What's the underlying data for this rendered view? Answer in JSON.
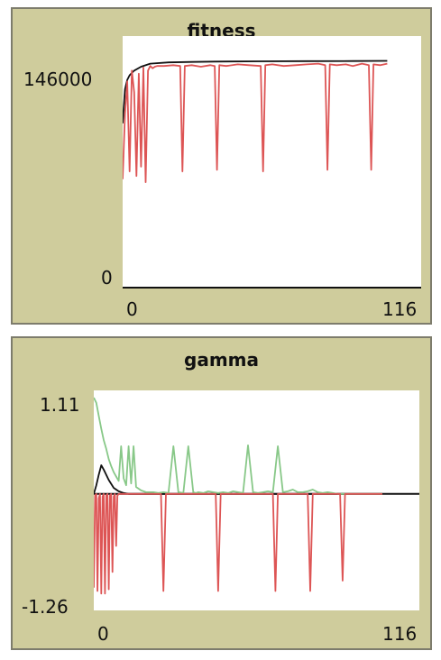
{
  "chart_data": [
    {
      "type": "line",
      "title": "fitness",
      "xlim": [
        0,
        116
      ],
      "ylim": [
        0,
        146000
      ],
      "x_tick_labels": [
        "0",
        "116"
      ],
      "y_tick_labels": [
        "146000",
        "0"
      ],
      "grid": false,
      "series": [
        {
          "color": "#111111",
          "x": [
            0,
            1,
            2,
            3,
            5,
            8,
            12,
            20,
            30,
            40,
            60,
            80,
            100,
            115
          ],
          "values": [
            106000,
            128000,
            134000,
            137000,
            140000,
            142500,
            144500,
            145300,
            145600,
            145800,
            146000,
            146100,
            146200,
            146300
          ]
        },
        {
          "color": "#dd5555",
          "x": [
            0,
            1,
            2,
            3,
            4,
            5,
            6,
            7,
            8,
            9,
            10,
            11,
            12,
            13,
            14,
            15,
            18,
            22,
            25,
            26,
            27,
            30,
            34,
            38,
            40,
            41,
            42,
            45,
            50,
            55,
            60,
            61,
            62,
            65,
            70,
            75,
            80,
            85,
            88,
            89,
            90,
            93,
            97,
            100,
            104,
            107,
            108,
            109,
            112,
            115
          ],
          "values": [
            70000,
            112000,
            133000,
            75000,
            140000,
            126000,
            72000,
            138000,
            78000,
            142000,
            68000,
            140000,
            143000,
            141500,
            142500,
            143000,
            143000,
            143500,
            143000,
            75000,
            143000,
            143500,
            142500,
            143500,
            143000,
            76000,
            143500,
            143000,
            144000,
            143500,
            143000,
            75000,
            143500,
            144000,
            143000,
            143500,
            144000,
            144500,
            143500,
            76000,
            144000,
            143500,
            144000,
            143000,
            144500,
            143500,
            76000,
            144000,
            143500,
            144500
          ]
        }
      ]
    },
    {
      "type": "line",
      "title": "gamma",
      "xlim": [
        0,
        116
      ],
      "ylim": [
        -1.26,
        1.11
      ],
      "x_tick_labels": [
        "0",
        "116"
      ],
      "y_tick_labels": [
        "1.11",
        "-1.26"
      ],
      "grid": false,
      "series": [
        {
          "color": "#111111",
          "x": [
            0,
            1,
            2,
            3,
            4,
            6,
            8,
            10,
            12,
            14,
            16,
            20,
            30,
            60,
            90,
            116
          ],
          "values": [
            0.0,
            0.1,
            0.22,
            0.33,
            0.28,
            0.16,
            0.07,
            0.03,
            0.01,
            0.0,
            0.0,
            0.0,
            0.0,
            0.0,
            0.0,
            0.0
          ]
        },
        {
          "color": "#88c888",
          "x": [
            0,
            1,
            2,
            3,
            4,
            5,
            6,
            7,
            8,
            9,
            10,
            11,
            12,
            13,
            14,
            15,
            16,
            17,
            18,
            19,
            20,
            21,
            22,
            23,
            24,
            26,
            28,
            30,
            32,
            34,
            36,
            38,
            40,
            41,
            42,
            44,
            45,
            46,
            48,
            50,
            52,
            54,
            56,
            58,
            60,
            62,
            64,
            66,
            68,
            70,
            72,
            74,
            76,
            78,
            80,
            82,
            84,
            86,
            88,
            90,
            92,
            94,
            96,
            98,
            100,
            102,
            104,
            106,
            108,
            110,
            112,
            114,
            116
          ],
          "values": [
            1.11,
            1.05,
            0.9,
            0.75,
            0.62,
            0.52,
            0.4,
            0.32,
            0.25,
            0.2,
            0.15,
            0.55,
            0.18,
            0.1,
            0.55,
            0.12,
            0.55,
            0.08,
            0.06,
            0.04,
            0.03,
            0.02,
            0.02,
            0.02,
            0.02,
            0.01,
            0.02,
            0.01,
            0.55,
            0.02,
            0.01,
            0.55,
            0.02,
            0.01,
            0.02,
            0.01,
            0.02,
            0.03,
            0.02,
            0.01,
            0.02,
            0.01,
            0.03,
            0.02,
            0.01,
            0.56,
            0.02,
            0.01,
            0.02,
            0.03,
            0.02,
            0.55,
            0.02,
            0.03,
            0.05,
            0.02,
            0.02,
            0.03,
            0.05,
            0.02,
            0.01,
            0.02,
            0.01,
            0.0,
            0.0,
            0.0,
            0.0,
            0.0,
            0.0,
            0.0,
            0.0,
            0.0,
            0.0
          ]
        },
        {
          "color": "#dd5555",
          "x": [
            0,
            0.5,
            1,
            1.5,
            2,
            2.5,
            3,
            3.5,
            4,
            4.5,
            5,
            5.5,
            6,
            6.5,
            7,
            7.5,
            8,
            8.5,
            9,
            9.5,
            10,
            20,
            24,
            27,
            28,
            29,
            32,
            45,
            49,
            50,
            51,
            60,
            72,
            73,
            74,
            80,
            86,
            87,
            88,
            95,
            99,
            100,
            101,
            116
          ],
          "values": [
            -1.08,
            -0.02,
            0.0,
            -1.12,
            -0.05,
            0.0,
            -1.15,
            -0.03,
            0.0,
            -1.15,
            -0.02,
            0.0,
            -1.1,
            -0.02,
            0.0,
            -0.9,
            -0.03,
            0.0,
            -0.6,
            -0.02,
            0.0,
            0.0,
            0.0,
            0.0,
            -1.12,
            0.0,
            0.0,
            0.0,
            0.0,
            -1.12,
            0.0,
            0.0,
            0.0,
            -1.12,
            0.0,
            0.0,
            0.0,
            -1.12,
            0.0,
            0.0,
            0.0,
            -1.0,
            0.0,
            0.0
          ]
        }
      ]
    }
  ]
}
